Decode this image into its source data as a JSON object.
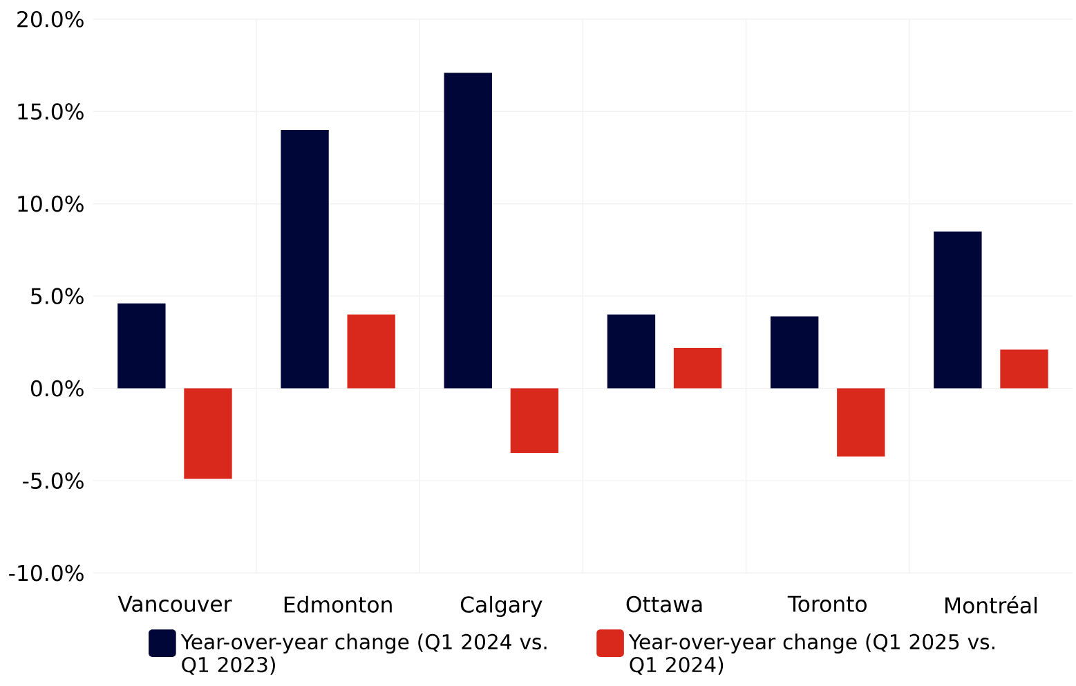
{
  "chart_data": {
    "type": "bar",
    "categories": [
      "Vancouver",
      "Edmonton",
      "Calgary",
      "Ottawa",
      "Toronto",
      "Montréal"
    ],
    "series": [
      {
        "name": "Year-over-year change (Q1 2024 vs. Q1 2023)",
        "color": "#000738",
        "values": [
          4.6,
          14.0,
          17.1,
          4.0,
          3.9,
          8.5
        ]
      },
      {
        "name": "Year-over-year change (Q1 2025 vs. Q1 2024)",
        "color": "#d9291c",
        "values": [
          -4.9,
          4.0,
          -3.5,
          2.2,
          -3.7,
          2.1
        ]
      }
    ],
    "ylim": [
      -10,
      20
    ],
    "yticks": [
      {
        "value": -10,
        "label": "-10.0%"
      },
      {
        "value": -5,
        "label": "-5.0%"
      },
      {
        "value": 0,
        "label": "0.0%"
      },
      {
        "value": 5,
        "label": "5.0%"
      },
      {
        "value": 10,
        "label": "10.0%"
      },
      {
        "value": 15,
        "label": "15.0%"
      },
      {
        "value": 20,
        "label": "20.0%"
      }
    ],
    "grid": true,
    "legend": "bottom"
  }
}
